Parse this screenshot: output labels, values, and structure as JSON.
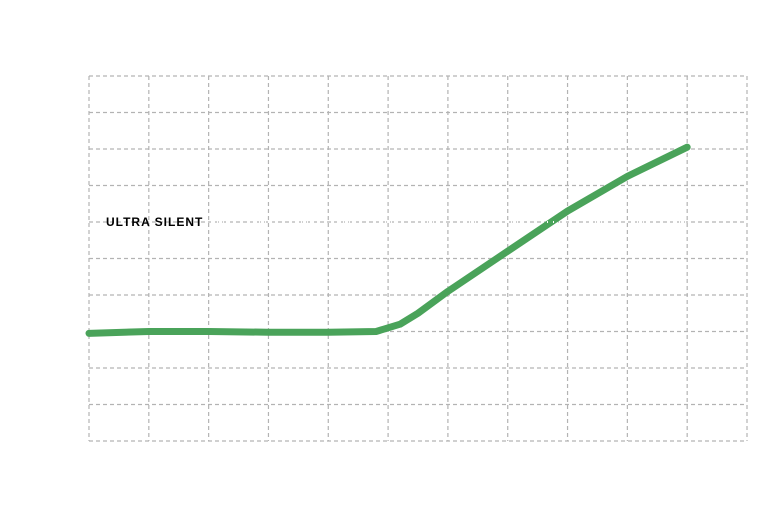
{
  "chart_data": {
    "type": "line",
    "x": [
      0,
      1,
      2,
      3,
      4,
      4.8,
      5.2,
      5.5,
      6,
      7,
      8,
      9,
      10
    ],
    "series": [
      {
        "color": "#4aa35a",
        "values": [
          2.95,
          3.0,
          3.0,
          2.98,
          2.98,
          3.0,
          3.2,
          3.5,
          4.1,
          5.2,
          6.3,
          7.25,
          8.05
        ]
      }
    ],
    "xlim": [
      0,
      11
    ],
    "xticks": [
      0,
      1,
      2,
      3,
      4,
      5,
      6,
      7,
      8,
      9,
      10,
      11
    ],
    "ylim": [
      0,
      10
    ],
    "yticks": [
      0,
      1,
      2,
      3,
      4,
      5,
      6,
      7,
      8,
      9,
      10
    ],
    "grid": true,
    "show_tick_labels": false,
    "annotation": {
      "text": "ULTRA SILENT",
      "y": 6
    }
  }
}
